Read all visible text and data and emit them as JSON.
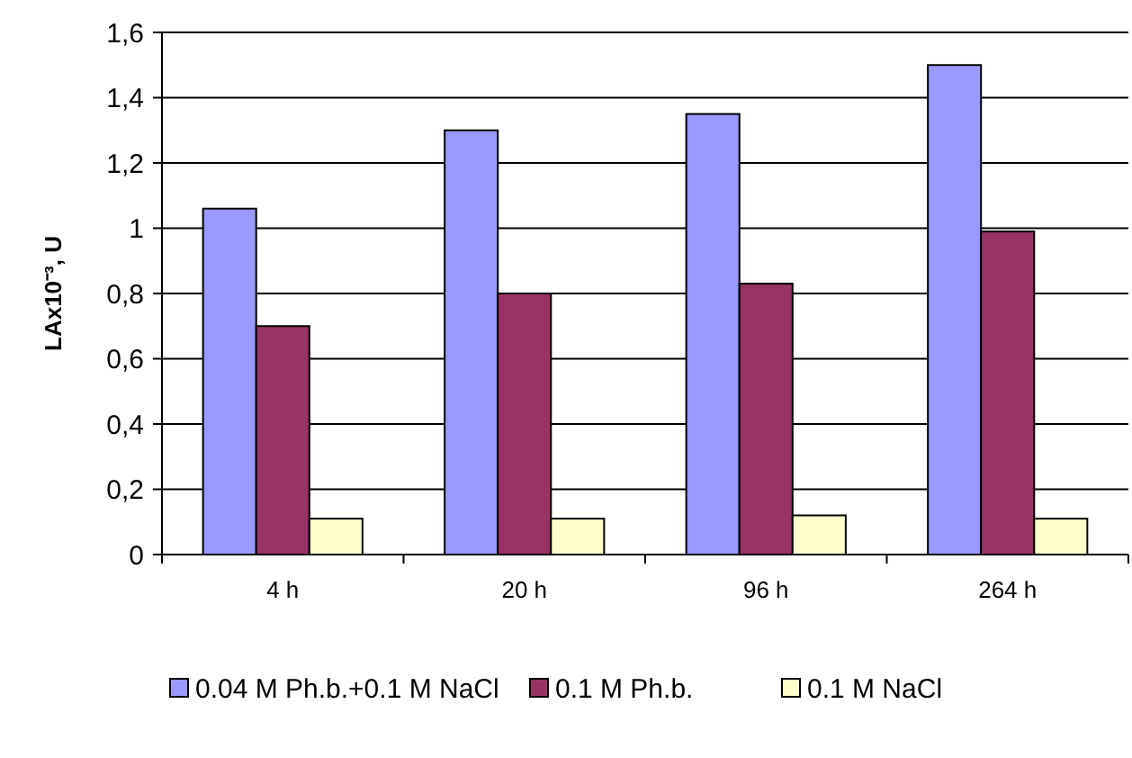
{
  "chart_data": {
    "type": "bar",
    "ylabel": "LAx10⁻³, U",
    "categories": [
      "4 h",
      "20 h",
      "96 h",
      "264 h"
    ],
    "series": [
      {
        "name": "0.04 M Ph.b.+0.1 M NaCl",
        "color": "#9999ff",
        "values": [
          1.06,
          1.3,
          1.35,
          1.5
        ]
      },
      {
        "name": "0.1 M Ph.b.",
        "color": "#993366",
        "values": [
          0.7,
          0.8,
          0.83,
          0.99
        ]
      },
      {
        "name": "0.1 M NaCl",
        "color": "#ffffcc",
        "values": [
          0.11,
          0.11,
          0.12,
          0.11
        ]
      }
    ],
    "ylim": [
      0,
      1.6
    ],
    "yticks": [
      0,
      {
        "value": 0.2,
        "label": "0,2"
      },
      {
        "value": 0.4,
        "label": "0,4"
      },
      {
        "value": 0.6,
        "label": "0,6"
      },
      {
        "value": 0.8,
        "label": "0,8"
      },
      1,
      {
        "value": 1.2,
        "label": "1,2"
      },
      {
        "value": 1.4,
        "label": "1,4"
      },
      {
        "value": 1.6,
        "label": "1,6"
      }
    ],
    "grid": "y",
    "legend": "bottom"
  }
}
